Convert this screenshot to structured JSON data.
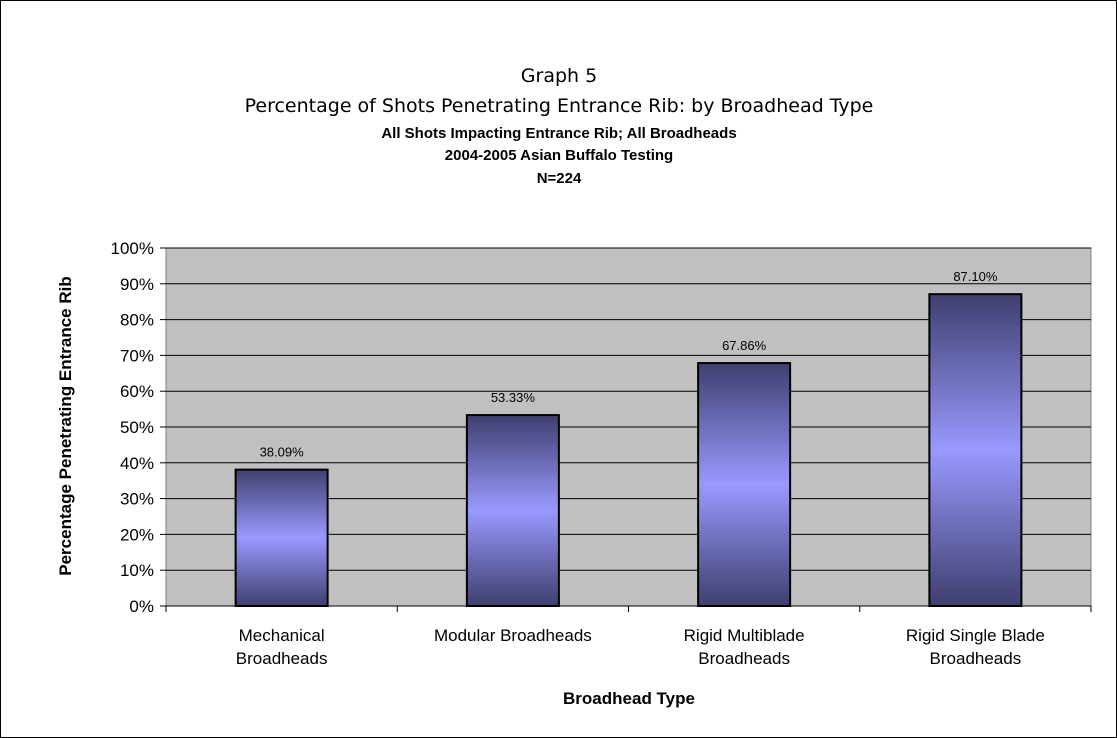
{
  "chart_data": {
    "type": "bar",
    "title": "Graph 5",
    "subtitle": "Percentage of Shots Penetrating Entrance Rib: by Broadhead Type",
    "subtitle_lines": [
      "All Shots Impacting Entrance Rib; All Broadheads",
      "2004-2005 Asian Buffalo Testing",
      "N=224"
    ],
    "xlabel": "Broadhead Type",
    "ylabel": "Percentage Penetrating Entrance Rib",
    "categories": [
      [
        "Mechanical",
        "Broadheads"
      ],
      [
        "Modular Broadheads"
      ],
      [
        "Rigid Multiblade",
        "Broadheads"
      ],
      [
        "Rigid Single Blade",
        "Broadheads"
      ]
    ],
    "values": [
      38.09,
      53.33,
      67.86,
      87.1
    ],
    "data_labels": [
      "38.09%",
      "53.33%",
      "67.86%",
      "87.10%"
    ],
    "ylim": [
      0,
      100
    ],
    "yticks": [
      "0%",
      "10%",
      "20%",
      "30%",
      "40%",
      "50%",
      "60%",
      "70%",
      "80%",
      "90%",
      "100%"
    ],
    "grid": true,
    "legend": "none",
    "colors": {
      "plot_bg": "#c0c0c0",
      "bar_edge": "#3f3f6f",
      "bar_center": "#9999ff",
      "grid": "#000000"
    }
  }
}
